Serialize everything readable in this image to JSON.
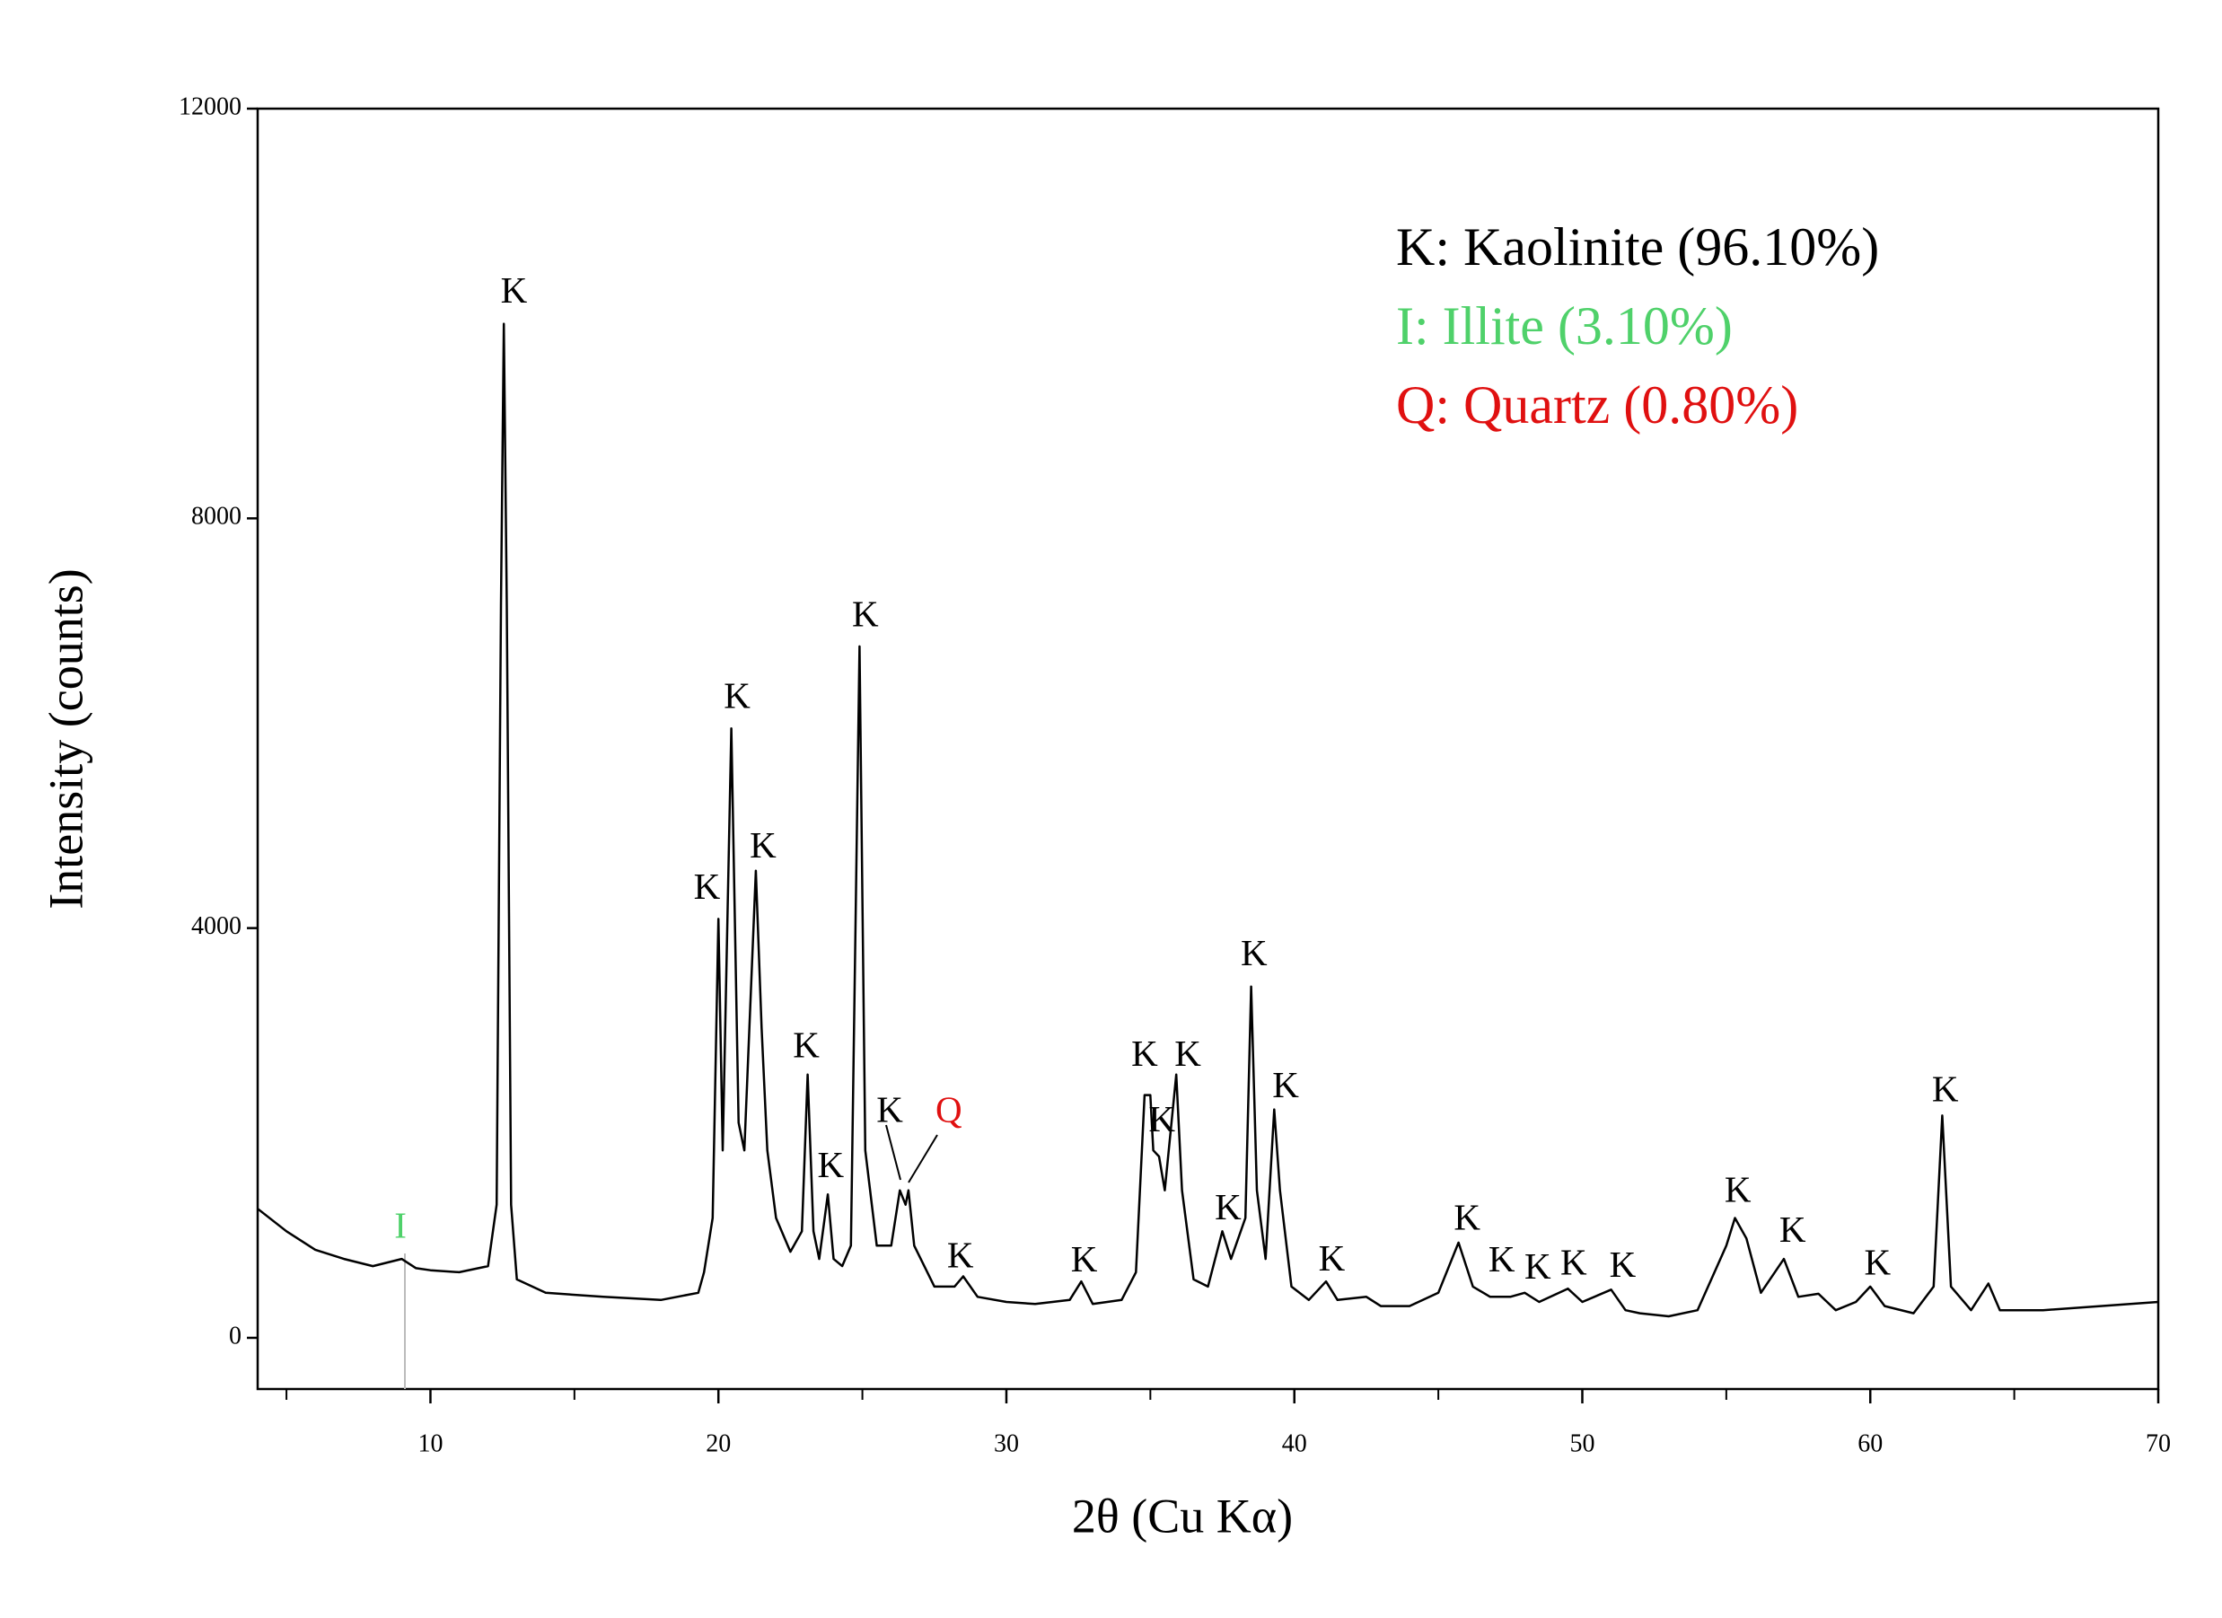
{
  "chart_data": {
    "type": "line",
    "color": "#000000",
    "x_label": "2θ (Cu Kα)",
    "y_label": "Intensity (counts)",
    "xlim": [
      4,
      70
    ],
    "ylim": [
      -500,
      12000
    ],
    "xticks": [
      10,
      20,
      30,
      40,
      50,
      60,
      70
    ],
    "xminor_ticks": [
      5,
      15,
      25,
      35,
      45,
      55,
      65
    ],
    "yticks": [
      0,
      4000,
      8000,
      12000
    ],
    "x": [
      4,
      5,
      6,
      7,
      8,
      9,
      9.5,
      10,
      11,
      12,
      12.3,
      12.45,
      12.55,
      12.65,
      12.8,
      13,
      14,
      16,
      18,
      19.3,
      19.5,
      19.8,
      20.0,
      20.15,
      20.45,
      20.7,
      20.9,
      21.3,
      21.5,
      21.7,
      22,
      22.5,
      22.9,
      23.1,
      23.3,
      23.5,
      23.8,
      24.0,
      24.3,
      24.6,
      24.9,
      25.1,
      25.5,
      26,
      26.3,
      26.5,
      26.6,
      26.8,
      27.5,
      28.2,
      28.5,
      29,
      30,
      31,
      32.2,
      32.6,
      33,
      34,
      34.5,
      34.8,
      35,
      35.1,
      35.3,
      35.5,
      35.9,
      36.1,
      36.5,
      37,
      37.5,
      37.8,
      38.3,
      38.5,
      38.7,
      39,
      39.3,
      39.5,
      39.9,
      40.5,
      41.1,
      41.5,
      42.5,
      43,
      44,
      45,
      45.7,
      46.2,
      46.8,
      47.5,
      48,
      48.5,
      49.5,
      50,
      51,
      51.5,
      52,
      53,
      54,
      55,
      55.3,
      55.7,
      56.2,
      57,
      57.5,
      58.2,
      58.8,
      59.5,
      60,
      60.5,
      61.5,
      62.2,
      62.5,
      62.8,
      63.5,
      64.1,
      64.5,
      66,
      68,
      70
    ],
    "values": [
      1260,
      1040,
      860,
      770,
      700,
      770,
      680,
      660,
      640,
      700,
      1300,
      7150,
      9900,
      7150,
      1300,
      570,
      440,
      400,
      370,
      440,
      640,
      1170,
      4090,
      1830,
      5950,
      2100,
      1830,
      4560,
      3030,
      1830,
      1170,
      840,
      1040,
      2570,
      1040,
      770,
      1400,
      770,
      700,
      900,
      6750,
      1830,
      900,
      900,
      1440,
      1300,
      1440,
      900,
      500,
      500,
      600,
      400,
      350,
      330,
      370,
      550,
      330,
      370,
      640,
      2370,
      2370,
      1830,
      1770,
      1440,
      2570,
      1440,
      570,
      500,
      1040,
      770,
      1170,
      3430,
      1440,
      770,
      2230,
      1440,
      500,
      370,
      550,
      370,
      400,
      310,
      310,
      440,
      930,
      500,
      400,
      400,
      440,
      350,
      480,
      350,
      470,
      270,
      240,
      210,
      270,
      900,
      1170,
      970,
      440,
      770,
      400,
      430,
      270,
      350,
      500,
      310,
      240,
      500,
      2170,
      500,
      270,
      530,
      270,
      270,
      310,
      350
    ],
    "annotations": [
      {
        "text": "I",
        "x": 8.96,
        "y": 1060,
        "color": "#4fd16a"
      },
      {
        "text": "K",
        "x": 12.9,
        "y": 10190
      },
      {
        "text": "K",
        "x": 19.6,
        "y": 4370
      },
      {
        "text": "K",
        "x": 20.65,
        "y": 6230
      },
      {
        "text": "K",
        "x": 21.55,
        "y": 4770
      },
      {
        "text": "K",
        "x": 23.05,
        "y": 2820
      },
      {
        "text": "K",
        "x": 23.9,
        "y": 1650
      },
      {
        "text": "K",
        "x": 25.1,
        "y": 7030
      },
      {
        "text": "K",
        "x": 25.95,
        "y": 2190
      },
      {
        "text": "Q",
        "x": 28.0,
        "y": 2190,
        "color": "#e01010"
      },
      {
        "text": "K",
        "x": 28.4,
        "y": 770
      },
      {
        "text": "K",
        "x": 32.7,
        "y": 730
      },
      {
        "text": "K",
        "x": 34.8,
        "y": 2740
      },
      {
        "text": "K",
        "x": 35.4,
        "y": 2100
      },
      {
        "text": "K",
        "x": 36.3,
        "y": 2740
      },
      {
        "text": "K",
        "x": 37.7,
        "y": 1240
      },
      {
        "text": "K",
        "x": 38.6,
        "y": 3720
      },
      {
        "text": "K",
        "x": 39.7,
        "y": 2430
      },
      {
        "text": "K",
        "x": 41.3,
        "y": 740
      },
      {
        "text": "K",
        "x": 46.0,
        "y": 1140
      },
      {
        "text": "K",
        "x": 47.2,
        "y": 730
      },
      {
        "text": "K",
        "x": 48.45,
        "y": 660
      },
      {
        "text": "K",
        "x": 49.7,
        "y": 700
      },
      {
        "text": "K",
        "x": 51.4,
        "y": 680
      },
      {
        "text": "K",
        "x": 55.4,
        "y": 1410
      },
      {
        "text": "K",
        "x": 57.3,
        "y": 1020
      },
      {
        "text": "K",
        "x": 60.25,
        "y": 700
      },
      {
        "text": "K",
        "x": 62.6,
        "y": 2390
      }
    ],
    "legend_box": [
      {
        "text": "K: Kaolinite (96.10%)",
        "color": "#000000"
      },
      {
        "text": "I: Illite (3.10%)",
        "color": "#4fd16a"
      },
      {
        "text": "Q: Quartz (0.80%)",
        "color": "#e01010"
      }
    ]
  }
}
